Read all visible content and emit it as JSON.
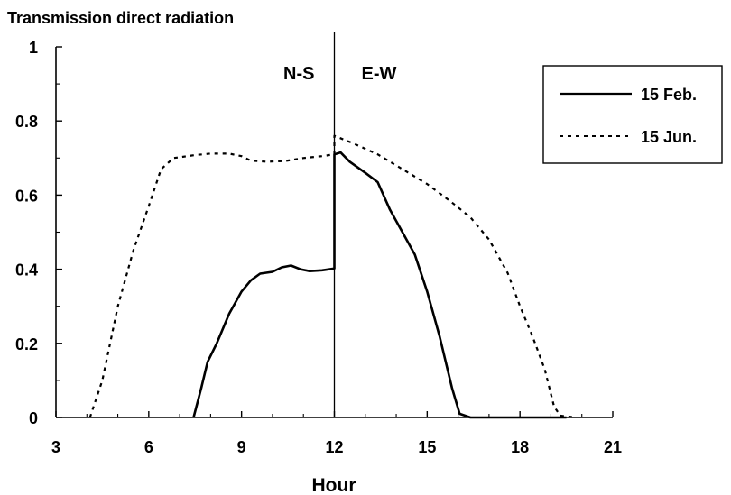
{
  "chart_data": {
    "type": "line",
    "ylabel": "Transmission direct radiation",
    "xlabel": "Hour",
    "xlim": [
      3,
      21
    ],
    "ylim": [
      0,
      1
    ],
    "x_ticks": [
      3,
      6,
      9,
      12,
      15,
      18,
      21
    ],
    "y_ticks": [
      0,
      0.2,
      0.4,
      0.6,
      0.8,
      1
    ],
    "y_tick_labels": [
      "0",
      "0.2",
      "0.4",
      "0.6",
      "0.8",
      "1"
    ],
    "grid": false,
    "legend_position": "top-right",
    "divider": {
      "x": 12,
      "left_label": "N-S",
      "right_label": "E-W"
    },
    "series": [
      {
        "name": "15 Feb.",
        "style": "solid",
        "color": "#000000",
        "points": [
          [
            7.45,
            0
          ],
          [
            7.7,
            0.08
          ],
          [
            7.9,
            0.15
          ],
          [
            8.2,
            0.2
          ],
          [
            8.6,
            0.28
          ],
          [
            9.0,
            0.34
          ],
          [
            9.3,
            0.37
          ],
          [
            9.6,
            0.388
          ],
          [
            10.0,
            0.393
          ],
          [
            10.3,
            0.405
          ],
          [
            10.6,
            0.41
          ],
          [
            10.9,
            0.4
          ],
          [
            11.2,
            0.395
          ],
          [
            11.6,
            0.397
          ],
          [
            12.0,
            0.402
          ],
          [
            12.0,
            0.71
          ],
          [
            12.2,
            0.715
          ],
          [
            12.5,
            0.69
          ],
          [
            13.0,
            0.66
          ],
          [
            13.4,
            0.635
          ],
          [
            13.8,
            0.56
          ],
          [
            14.2,
            0.5
          ],
          [
            14.6,
            0.44
          ],
          [
            15.0,
            0.34
          ],
          [
            15.4,
            0.22
          ],
          [
            15.8,
            0.08
          ],
          [
            16.05,
            0.01
          ],
          [
            16.4,
            0
          ],
          [
            19.5,
            0
          ]
        ]
      },
      {
        "name": "15 Jun.",
        "style": "dotted",
        "color": "#000000",
        "points": [
          [
            4.1,
            0
          ],
          [
            4.5,
            0.1
          ],
          [
            5.0,
            0.3
          ],
          [
            5.5,
            0.45
          ],
          [
            6.0,
            0.57
          ],
          [
            6.4,
            0.67
          ],
          [
            6.8,
            0.7
          ],
          [
            7.5,
            0.708
          ],
          [
            8.0,
            0.712
          ],
          [
            8.6,
            0.712
          ],
          [
            9.0,
            0.705
          ],
          [
            9.3,
            0.693
          ],
          [
            9.8,
            0.69
          ],
          [
            10.4,
            0.692
          ],
          [
            11.0,
            0.7
          ],
          [
            11.6,
            0.705
          ],
          [
            12.0,
            0.71
          ],
          [
            12.0,
            0.76
          ],
          [
            12.6,
            0.74
          ],
          [
            13.4,
            0.71
          ],
          [
            14.2,
            0.67
          ],
          [
            15.0,
            0.63
          ],
          [
            15.8,
            0.58
          ],
          [
            16.4,
            0.54
          ],
          [
            17.0,
            0.48
          ],
          [
            17.6,
            0.39
          ],
          [
            18.0,
            0.3
          ],
          [
            18.4,
            0.22
          ],
          [
            18.8,
            0.13
          ],
          [
            19.1,
            0.03
          ],
          [
            19.3,
            0.005
          ],
          [
            19.8,
            0
          ]
        ]
      }
    ]
  }
}
